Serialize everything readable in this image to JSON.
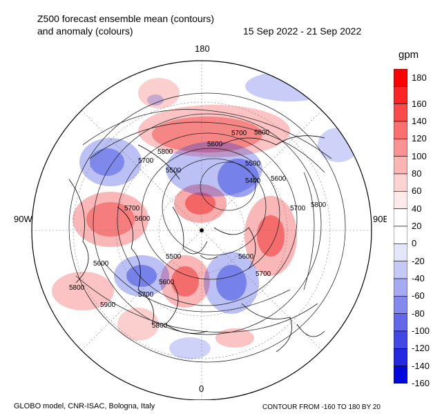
{
  "header": {
    "title_line1": "Z500 forecast ensemble mean (contours)",
    "title_line2": "and anomaly (colours)",
    "date_range": "15 Sep 2022 - 21 Sep 2022"
  },
  "map": {
    "projection": "north-polar-stereographic",
    "longitude_labels": {
      "top": "180",
      "bottom": "0",
      "left": "90W",
      "right": "90E"
    },
    "contour_labels": [
      "5800",
      "5700",
      "5800",
      "5700",
      "5600",
      "5500",
      "5400",
      "5600",
      "5500",
      "5700",
      "5800",
      "5600",
      "5700",
      "5500",
      "5600",
      "5700",
      "5600",
      "5800",
      "5900",
      "5600",
      "5700",
      "5800"
    ],
    "anomaly_colors": {
      "positive": "#ee1111",
      "negative": "#2233dd"
    }
  },
  "colorbar": {
    "unit": "gpm",
    "ticks": [
      "180",
      "160",
      "140",
      "120",
      "100",
      "80",
      "60",
      "40",
      "20",
      "0",
      "-20",
      "-40",
      "-60",
      "-80",
      "-100",
      "-120",
      "-140",
      "-160"
    ],
    "colors": [
      "#fb0000",
      "#fb2525",
      "#fb4a4a",
      "#fb6f6f",
      "#fb9393",
      "#fbb5b5",
      "#fcd3d3",
      "#feeaea",
      "#ffffff",
      "#ffffff",
      "#e4e6fb",
      "#c6c9f6",
      "#a6aaf2",
      "#8489ee",
      "#6368ea",
      "#4248e5",
      "#2229e1",
      "#0008dc"
    ]
  },
  "footer": {
    "left": "GLOBO model, CNR-ISAC, Bologna, Italy",
    "right": "CONTOUR FROM -160 TO 180 BY 20"
  }
}
